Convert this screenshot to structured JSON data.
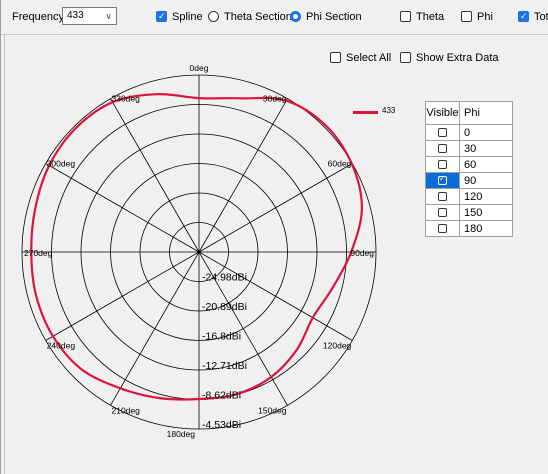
{
  "toolbar": {
    "frequency_label": "Frequency:",
    "frequency_value": "433",
    "spline_label": "Spline",
    "spline_checked": true,
    "theta_section_label": "Theta Section",
    "phi_section_label": "Phi Section",
    "selected_section": "Phi Section",
    "theta_label": "Theta",
    "theta_checked": false,
    "phi_label": "Phi",
    "phi_checked": false,
    "total_label": "Tota",
    "total_checked": true
  },
  "options": {
    "select_all_label": "Select All",
    "select_all_checked": false,
    "show_extra_label": "Show Extra Data",
    "show_extra_checked": false
  },
  "legend": {
    "label": "433",
    "color": "#dc143c"
  },
  "phi_table": {
    "headers": [
      "Visible",
      "Phi"
    ],
    "rows": [
      {
        "phi": "0",
        "visible": false
      },
      {
        "phi": "30",
        "visible": false
      },
      {
        "phi": "60",
        "visible": false
      },
      {
        "phi": "90",
        "visible": true
      },
      {
        "phi": "120",
        "visible": false
      },
      {
        "phi": "150",
        "visible": false
      },
      {
        "phi": "180",
        "visible": false
      }
    ]
  },
  "chart_data": {
    "type": "polar",
    "angle_labels": [
      "0deg",
      "330deg",
      "300deg",
      "270deg",
      "240deg",
      "210deg",
      "180deg",
      "150deg",
      "120deg",
      "90deg",
      "60deg",
      "30deg"
    ],
    "radial_labels": [
      "-24.98dBi",
      "-20.89dBi",
      "-16.8dBi",
      "-12.71dBi",
      "-8.62dBi",
      "-4.53dBi"
    ],
    "rlim": [
      -24.98,
      -4.53
    ],
    "series": [
      {
        "name": "433",
        "color": "#dc143c",
        "angles_deg": [
          0,
          15,
          30,
          45,
          60,
          75,
          90,
          105,
          120,
          135,
          150,
          165,
          180,
          195,
          210,
          225,
          240,
          255,
          270,
          285,
          300,
          315,
          330,
          345
        ],
        "values_dbi": [
          -7.2,
          -6.1,
          -5.0,
          -4.8,
          -5.0,
          -5.4,
          -5.6,
          -5.5,
          -5.5,
          -5.8,
          -6.8,
          -7.5,
          -8.0,
          -8.0,
          -8.3,
          -9.0,
          -9.8,
          -9.0,
          -7.4,
          -5.5,
          -4.6,
          -4.3,
          -4.8,
          -6.6
        ]
      }
    ]
  }
}
